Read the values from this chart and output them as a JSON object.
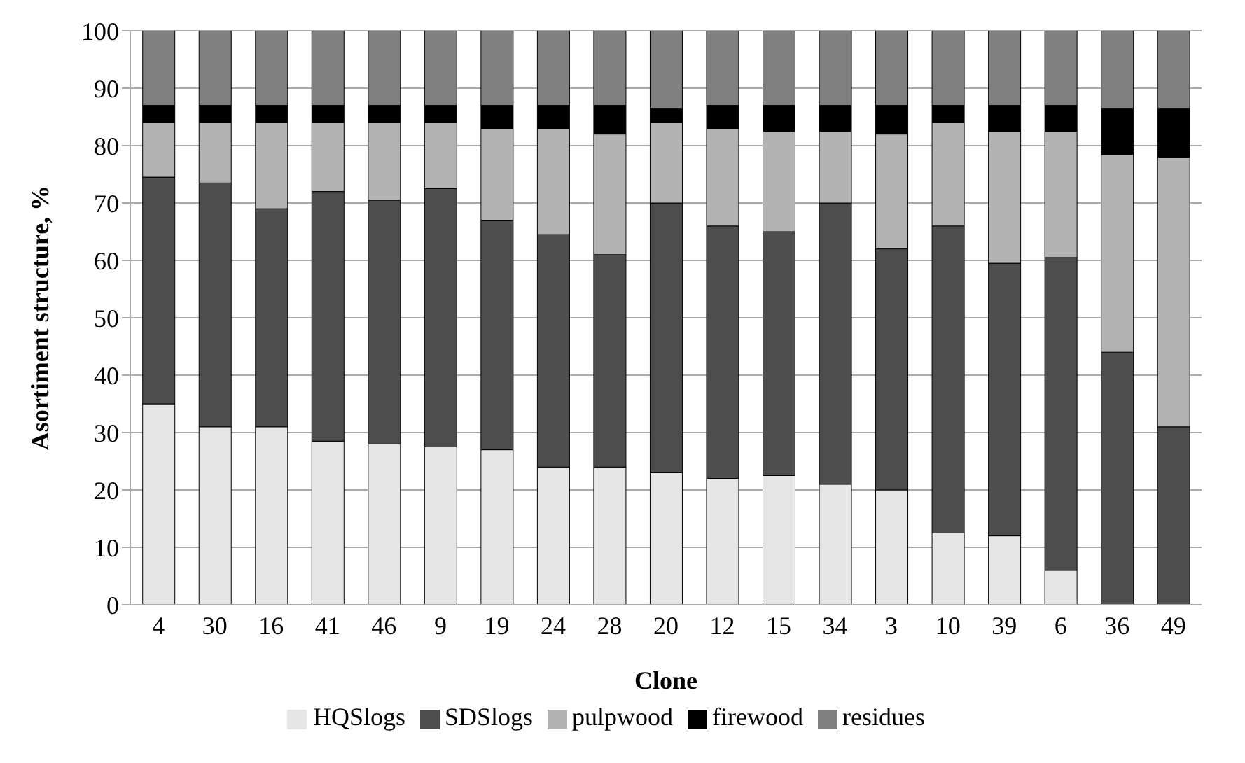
{
  "chart_data": {
    "type": "bar",
    "stacked": true,
    "xlabel": "Clone",
    "ylabel": "Asortiment structure, %",
    "categories": [
      "4",
      "30",
      "16",
      "41",
      "46",
      "9",
      "19",
      "24",
      "28",
      "20",
      "12",
      "15",
      "34",
      "3",
      "10",
      "39",
      "6",
      "36",
      "49"
    ],
    "series": [
      {
        "name": "HQSlogs",
        "color": "#e6e6e6",
        "values": [
          35,
          31,
          31,
          28.5,
          28,
          27.5,
          27,
          24,
          24,
          23,
          22,
          22.5,
          21,
          20,
          12.5,
          12,
          6,
          0,
          0
        ]
      },
      {
        "name": "SDSlogs",
        "color": "#4d4d4d",
        "values": [
          39.5,
          42.5,
          38,
          43.5,
          42.5,
          45,
          40,
          40.5,
          37,
          47,
          44,
          42.5,
          49,
          42,
          53.5,
          47.5,
          54.5,
          44,
          31
        ]
      },
      {
        "name": "pulpwood",
        "color": "#b3b3b3",
        "values": [
          9.5,
          10.5,
          15,
          12,
          13.5,
          11.5,
          16,
          18.5,
          21,
          14,
          17,
          17.5,
          12.5,
          20,
          18,
          23,
          22,
          34.5,
          47
        ]
      },
      {
        "name": "firewood",
        "color": "#000000",
        "values": [
          3,
          3,
          3,
          3,
          3,
          3,
          4,
          4,
          5,
          2.5,
          4,
          4.5,
          4.5,
          5,
          3,
          4.5,
          4.5,
          8,
          8.5
        ]
      },
      {
        "name": "residues",
        "color": "#808080",
        "values": [
          13,
          13,
          13,
          13,
          13,
          13,
          13,
          13,
          13,
          13.5,
          13,
          13,
          13,
          13,
          13,
          13,
          13,
          13.5,
          13.5
        ]
      }
    ],
    "ylim": [
      0,
      100
    ],
    "yticks": [
      0,
      10,
      20,
      30,
      40,
      50,
      60,
      70,
      80,
      90,
      100
    ],
    "grid": "y",
    "legend": "bottom"
  }
}
